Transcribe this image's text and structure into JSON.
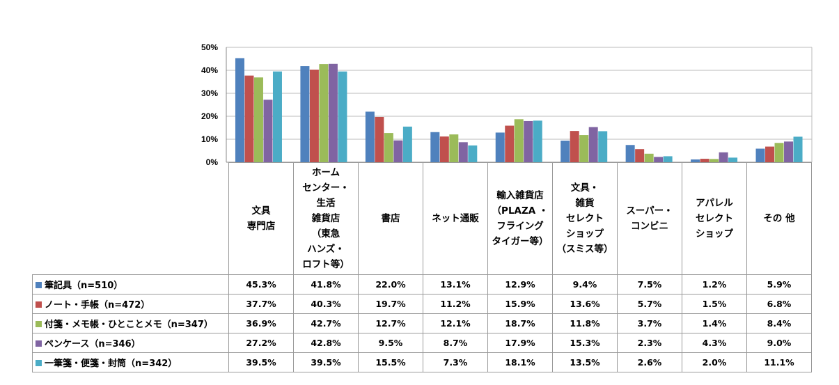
{
  "chart_data": {
    "type": "bar",
    "title": "",
    "ylim": [
      0,
      50
    ],
    "yticks": [
      "0%",
      "10%",
      "20%",
      "30%",
      "40%",
      "50%"
    ],
    "grid": true,
    "legend": "table-left",
    "categories": [
      "文具\n専門店",
      "ホーム\nセンター・\n生活\n雑貨店\n（東急\nハンズ・\nロフト等）",
      "書店",
      "ネット通販",
      "輸入雑貨店\n（PLAZA ・\nフライング\nタイガー等）",
      "文具・\n雑貨\nセレクト\nショップ\n（スミス等）",
      "スーパー・\nコンビニ",
      "アパレル\nセレクト\nショップ",
      "その 他"
    ],
    "series": [
      {
        "name": "筆記具（n=510）",
        "color": "#4F81BD",
        "values": [
          45.3,
          41.8,
          22.0,
          13.1,
          12.9,
          9.4,
          7.5,
          1.2,
          5.9
        ],
        "labels": [
          "45.3%",
          "41.8%",
          "22.0%",
          "13.1%",
          "12.9%",
          "9.4%",
          "7.5%",
          "1.2%",
          "5.9%"
        ]
      },
      {
        "name": "ノート・手帳（n=472）",
        "color": "#C0504D",
        "values": [
          37.7,
          40.3,
          19.7,
          11.2,
          15.9,
          13.6,
          5.7,
          1.5,
          6.8
        ],
        "labels": [
          "37.7%",
          "40.3%",
          "19.7%",
          "11.2%",
          "15.9%",
          "13.6%",
          "5.7%",
          "1.5%",
          "6.8%"
        ]
      },
      {
        "name": "付箋・メモ帳・ひとことメモ（n=347）",
        "color": "#9BBB59",
        "values": [
          36.9,
          42.7,
          12.7,
          12.1,
          18.7,
          11.8,
          3.7,
          1.4,
          8.4
        ],
        "labels": [
          "36.9%",
          "42.7%",
          "12.7%",
          "12.1%",
          "18.7%",
          "11.8%",
          "3.7%",
          "1.4%",
          "8.4%"
        ]
      },
      {
        "name": "ペンケース（n=346）",
        "color": "#8064A2",
        "values": [
          27.2,
          42.8,
          9.5,
          8.7,
          17.9,
          15.3,
          2.3,
          4.3,
          9.0
        ],
        "labels": [
          "27.2%",
          "42.8%",
          "9.5%",
          "8.7%",
          "17.9%",
          "15.3%",
          "2.3%",
          "4.3%",
          "9.0%"
        ]
      },
      {
        "name": "一筆箋・便箋・封筒（n=342）",
        "color": "#4BACC6",
        "values": [
          39.5,
          39.5,
          15.5,
          7.3,
          18.1,
          13.5,
          2.6,
          2.0,
          11.1
        ],
        "labels": [
          "39.5%",
          "39.5%",
          "15.5%",
          "7.3%",
          "18.1%",
          "13.5%",
          "2.6%",
          "2.0%",
          "11.1%"
        ]
      }
    ]
  }
}
